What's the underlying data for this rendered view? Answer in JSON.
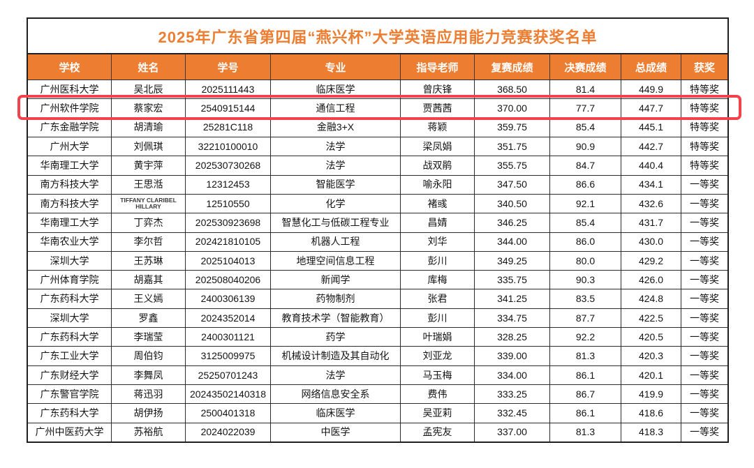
{
  "title": "2025年广东省第四届“燕兴杯”大学英语应用能力竞赛获奖名单",
  "colors": {
    "accent_orange": "#ED7D31",
    "highlight_red": "#F2434D",
    "header_text": "#FFFFFF",
    "cell_text": "#141414",
    "border": "#2B2B2B"
  },
  "table": {
    "columns": [
      {
        "key": "school",
        "label": "学校"
      },
      {
        "key": "name",
        "label": "姓名"
      },
      {
        "key": "student_id",
        "label": "学号"
      },
      {
        "key": "major",
        "label": "专业"
      },
      {
        "key": "advisor",
        "label": "指导老师"
      },
      {
        "key": "semifinal",
        "label": "复赛成绩"
      },
      {
        "key": "final",
        "label": "决赛成绩"
      },
      {
        "key": "total",
        "label": "总成绩"
      },
      {
        "key": "award",
        "label": "获奖"
      }
    ],
    "rows": [
      {
        "school": "广州医科大学",
        "name": "吴北辰",
        "student_id": "2025111443",
        "major": "临床医学",
        "advisor": "曾庆锋",
        "semifinal": "368.50",
        "final": "81.4",
        "total": "449.9",
        "award": "特等奖",
        "highlighted": false
      },
      {
        "school": "广州软件学院",
        "name": "蔡家宏",
        "student_id": "2540915144",
        "major": "通信工程",
        "advisor": "贾茜茜",
        "semifinal": "370.00",
        "final": "77.7",
        "total": "447.7",
        "award": "特等奖",
        "highlighted": true
      },
      {
        "school": "广东金融学院",
        "name": "胡清瑜",
        "student_id": "25281C118",
        "major": "金融3+X",
        "advisor": "蒋颖",
        "semifinal": "359.75",
        "final": "85.4",
        "total": "445.1",
        "award": "特等奖",
        "highlighted": false
      },
      {
        "school": "广州大学",
        "name": "刘佩琪",
        "student_id": "32210100010",
        "major": "法学",
        "advisor": "梁凤娟",
        "semifinal": "351.75",
        "final": "90.9",
        "total": "442.7",
        "award": "特等奖",
        "highlighted": false
      },
      {
        "school": "华南理工大学",
        "name": "黄宇萍",
        "student_id": "202530730268",
        "major": "法学",
        "advisor": "战双鹃",
        "semifinal": "355.75",
        "final": "84.7",
        "total": "440.4",
        "award": "特等奖",
        "highlighted": false
      },
      {
        "school": "南方科技大学",
        "name": "王思湉",
        "student_id": "12312453",
        "major": "智能医学",
        "advisor": "喻永阳",
        "semifinal": "347.50",
        "final": "86.6",
        "total": "434.1",
        "award": "一等奖",
        "highlighted": false
      },
      {
        "school": "南方科技大学",
        "name": "TIFFANY CLARIBEL HILLARY",
        "student_id": "12510550",
        "major": "化学",
        "advisor": "褚彧",
        "semifinal": "340.50",
        "final": "92.1",
        "total": "432.6",
        "award": "一等奖",
        "highlighted": false
      },
      {
        "school": "华南理工大学",
        "name": "丁弈杰",
        "student_id": "202530923698",
        "major": "智慧化工与低碳工程专业",
        "advisor": "昌婧",
        "semifinal": "346.25",
        "final": "85.4",
        "total": "431.7",
        "award": "一等奖",
        "highlighted": false
      },
      {
        "school": "华南农业大学",
        "name": "李尔哲",
        "student_id": "202421810105",
        "major": "机器人工程",
        "advisor": "刘华",
        "semifinal": "344.00",
        "final": "86.0",
        "total": "430.0",
        "award": "一等奖",
        "highlighted": false
      },
      {
        "school": "深圳大学",
        "name": "王苏琳",
        "student_id": "2025104013",
        "major": "地理空间信息工程",
        "advisor": "彭川",
        "semifinal": "349.25",
        "final": "80.0",
        "total": "429.2",
        "award": "一等奖",
        "highlighted": false
      },
      {
        "school": "广州体育学院",
        "name": "胡嘉其",
        "student_id": "202508040206",
        "major": "新闻学",
        "advisor": "库梅",
        "semifinal": "335.75",
        "final": "90.3",
        "total": "426.0",
        "award": "一等奖",
        "highlighted": false
      },
      {
        "school": "广东药科大学",
        "name": "王义嫣",
        "student_id": "2400306139",
        "major": "药物制剂",
        "advisor": "张君",
        "semifinal": "341.25",
        "final": "83.5",
        "total": "424.8",
        "award": "一等奖",
        "highlighted": false
      },
      {
        "school": "深圳大学",
        "name": "罗鑫",
        "student_id": "2024352014",
        "major": "教育技术学（智能教育）",
        "advisor": "彭川",
        "semifinal": "334.75",
        "final": "87.7",
        "total": "422.5",
        "award": "一等奖",
        "highlighted": false
      },
      {
        "school": "广东药科大学",
        "name": "李瑞莹",
        "student_id": "2400301121",
        "major": "药学",
        "advisor": "叶瑞娟",
        "semifinal": "328.25",
        "final": "92.2",
        "total": "420.5",
        "award": "一等奖",
        "highlighted": false
      },
      {
        "school": "广东工业大学",
        "name": "周伯钧",
        "student_id": "3125009975",
        "major": "机械设计制造及其自动化",
        "advisor": "刘亚龙",
        "semifinal": "339.00",
        "final": "81.3",
        "total": "420.3",
        "award": "一等奖",
        "highlighted": false
      },
      {
        "school": "广东财经大学",
        "name": "李舞凤",
        "student_id": "25250701243",
        "major": "法学",
        "advisor": "马玉梅",
        "semifinal": "334.00",
        "final": "86.1",
        "total": "420.1",
        "award": "一等奖",
        "highlighted": false
      },
      {
        "school": "广东警官学院",
        "name": "蒋迅羽",
        "student_id": "20243502140318",
        "major": "网络信息安全系",
        "advisor": "费伟",
        "semifinal": "333.25",
        "final": "86.7",
        "total": "419.9",
        "award": "一等奖",
        "highlighted": false
      },
      {
        "school": "广东药科大学",
        "name": "胡伊扬",
        "student_id": "2500401318",
        "major": "临床医学",
        "advisor": "吴亚莉",
        "semifinal": "332.45",
        "final": "86.1",
        "total": "418.6",
        "award": "一等奖",
        "highlighted": false
      },
      {
        "school": "广州中医药大学",
        "name": "苏裕航",
        "student_id": "2024022039",
        "major": "中医学",
        "advisor": "孟宪友",
        "semifinal": "337.00",
        "final": "81.3",
        "total": "418.3",
        "award": "一等奖",
        "highlighted": false
      }
    ]
  }
}
